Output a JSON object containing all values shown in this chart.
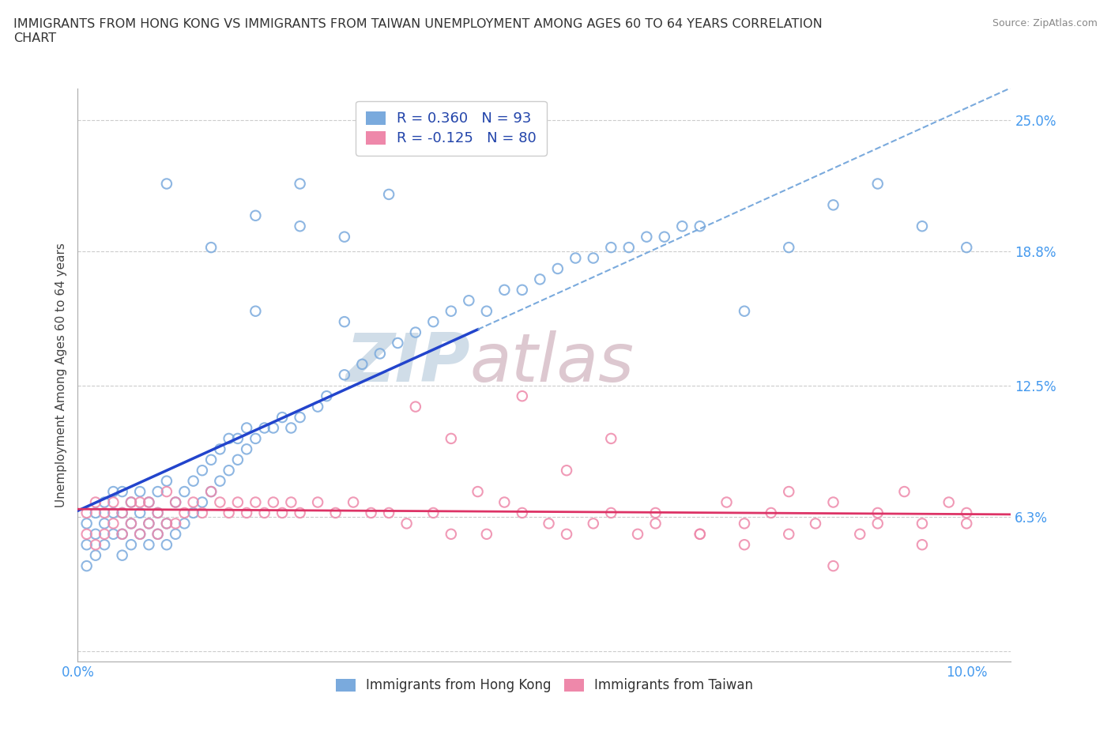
{
  "title": "IMMIGRANTS FROM HONG KONG VS IMMIGRANTS FROM TAIWAN UNEMPLOYMENT AMONG AGES 60 TO 64 YEARS CORRELATION\nCHART",
  "source_text": "Source: ZipAtlas.com",
  "ylabel": "Unemployment Among Ages 60 to 64 years",
  "xlim": [
    0.0,
    0.105
  ],
  "ylim": [
    -0.005,
    0.265
  ],
  "xticks": [
    0.0,
    0.02,
    0.04,
    0.06,
    0.08,
    0.1
  ],
  "xticklabels": [
    "0.0%",
    "",
    "",
    "",
    "",
    "10.0%"
  ],
  "ytick_positions": [
    0.0,
    0.063,
    0.125,
    0.188,
    0.25
  ],
  "yticklabels": [
    "",
    "6.3%",
    "12.5%",
    "18.8%",
    "25.0%"
  ],
  "hk_color": "#7aaadd",
  "tw_color": "#ee88aa",
  "hk_line_color": "#2244cc",
  "tw_line_color": "#dd3366",
  "background_color": "#ffffff",
  "grid_color": "#cccccc",
  "watermark_color": "#d0dde8",
  "watermark_color2": "#ddc8d0",
  "legend_hk_label": "R = 0.360   N = 93",
  "legend_tw_label": "R = -0.125   N = 80",
  "legend_bottom_hk": "Immigrants from Hong Kong",
  "legend_bottom_tw": "Immigrants from Taiwan",
  "hk_x": [
    0.001,
    0.001,
    0.001,
    0.002,
    0.002,
    0.002,
    0.003,
    0.003,
    0.003,
    0.004,
    0.004,
    0.004,
    0.005,
    0.005,
    0.005,
    0.005,
    0.006,
    0.006,
    0.006,
    0.007,
    0.007,
    0.007,
    0.008,
    0.008,
    0.008,
    0.009,
    0.009,
    0.009,
    0.01,
    0.01,
    0.01,
    0.011,
    0.011,
    0.012,
    0.012,
    0.013,
    0.013,
    0.014,
    0.014,
    0.015,
    0.015,
    0.016,
    0.016,
    0.017,
    0.017,
    0.018,
    0.018,
    0.019,
    0.019,
    0.02,
    0.021,
    0.022,
    0.023,
    0.024,
    0.025,
    0.027,
    0.028,
    0.03,
    0.032,
    0.034,
    0.036,
    0.038,
    0.04,
    0.042,
    0.044,
    0.046,
    0.048,
    0.05,
    0.052,
    0.054,
    0.056,
    0.058,
    0.06,
    0.062,
    0.064,
    0.066,
    0.068,
    0.07,
    0.075,
    0.08,
    0.085,
    0.09,
    0.095,
    0.1,
    0.02,
    0.025,
    0.03,
    0.035,
    0.01,
    0.015,
    0.02,
    0.025,
    0.03
  ],
  "hk_y": [
    0.05,
    0.06,
    0.04,
    0.055,
    0.065,
    0.045,
    0.06,
    0.07,
    0.05,
    0.055,
    0.065,
    0.075,
    0.045,
    0.055,
    0.065,
    0.075,
    0.05,
    0.06,
    0.07,
    0.055,
    0.065,
    0.075,
    0.05,
    0.06,
    0.07,
    0.055,
    0.065,
    0.075,
    0.05,
    0.06,
    0.08,
    0.055,
    0.07,
    0.06,
    0.075,
    0.065,
    0.08,
    0.07,
    0.085,
    0.075,
    0.09,
    0.08,
    0.095,
    0.085,
    0.1,
    0.09,
    0.1,
    0.095,
    0.105,
    0.1,
    0.105,
    0.105,
    0.11,
    0.105,
    0.11,
    0.115,
    0.12,
    0.13,
    0.135,
    0.14,
    0.145,
    0.15,
    0.155,
    0.16,
    0.165,
    0.16,
    0.17,
    0.17,
    0.175,
    0.18,
    0.185,
    0.185,
    0.19,
    0.19,
    0.195,
    0.195,
    0.2,
    0.2,
    0.16,
    0.19,
    0.21,
    0.22,
    0.2,
    0.19,
    0.16,
    0.22,
    0.195,
    0.215,
    0.22,
    0.19,
    0.205,
    0.2,
    0.155
  ],
  "tw_x": [
    0.001,
    0.001,
    0.002,
    0.002,
    0.003,
    0.003,
    0.004,
    0.004,
    0.005,
    0.005,
    0.006,
    0.006,
    0.007,
    0.007,
    0.008,
    0.008,
    0.009,
    0.009,
    0.01,
    0.01,
    0.011,
    0.011,
    0.012,
    0.013,
    0.014,
    0.015,
    0.016,
    0.017,
    0.018,
    0.019,
    0.02,
    0.021,
    0.022,
    0.023,
    0.024,
    0.025,
    0.027,
    0.029,
    0.031,
    0.033,
    0.035,
    0.037,
    0.04,
    0.042,
    0.045,
    0.048,
    0.05,
    0.053,
    0.055,
    0.058,
    0.06,
    0.063,
    0.065,
    0.07,
    0.073,
    0.075,
    0.078,
    0.08,
    0.083,
    0.085,
    0.088,
    0.09,
    0.093,
    0.095,
    0.098,
    0.1,
    0.038,
    0.042,
    0.046,
    0.05,
    0.055,
    0.06,
    0.065,
    0.07,
    0.075,
    0.08,
    0.085,
    0.09,
    0.095,
    0.1
  ],
  "tw_y": [
    0.055,
    0.065,
    0.05,
    0.07,
    0.055,
    0.065,
    0.06,
    0.07,
    0.055,
    0.065,
    0.06,
    0.07,
    0.055,
    0.07,
    0.06,
    0.07,
    0.055,
    0.065,
    0.06,
    0.075,
    0.06,
    0.07,
    0.065,
    0.07,
    0.065,
    0.075,
    0.07,
    0.065,
    0.07,
    0.065,
    0.07,
    0.065,
    0.07,
    0.065,
    0.07,
    0.065,
    0.07,
    0.065,
    0.07,
    0.065,
    0.065,
    0.06,
    0.065,
    0.055,
    0.075,
    0.07,
    0.065,
    0.06,
    0.055,
    0.06,
    0.065,
    0.055,
    0.06,
    0.055,
    0.07,
    0.06,
    0.065,
    0.055,
    0.06,
    0.07,
    0.055,
    0.065,
    0.075,
    0.06,
    0.07,
    0.06,
    0.115,
    0.1,
    0.055,
    0.12,
    0.085,
    0.1,
    0.065,
    0.055,
    0.05,
    0.075,
    0.04,
    0.06,
    0.05,
    0.065
  ]
}
